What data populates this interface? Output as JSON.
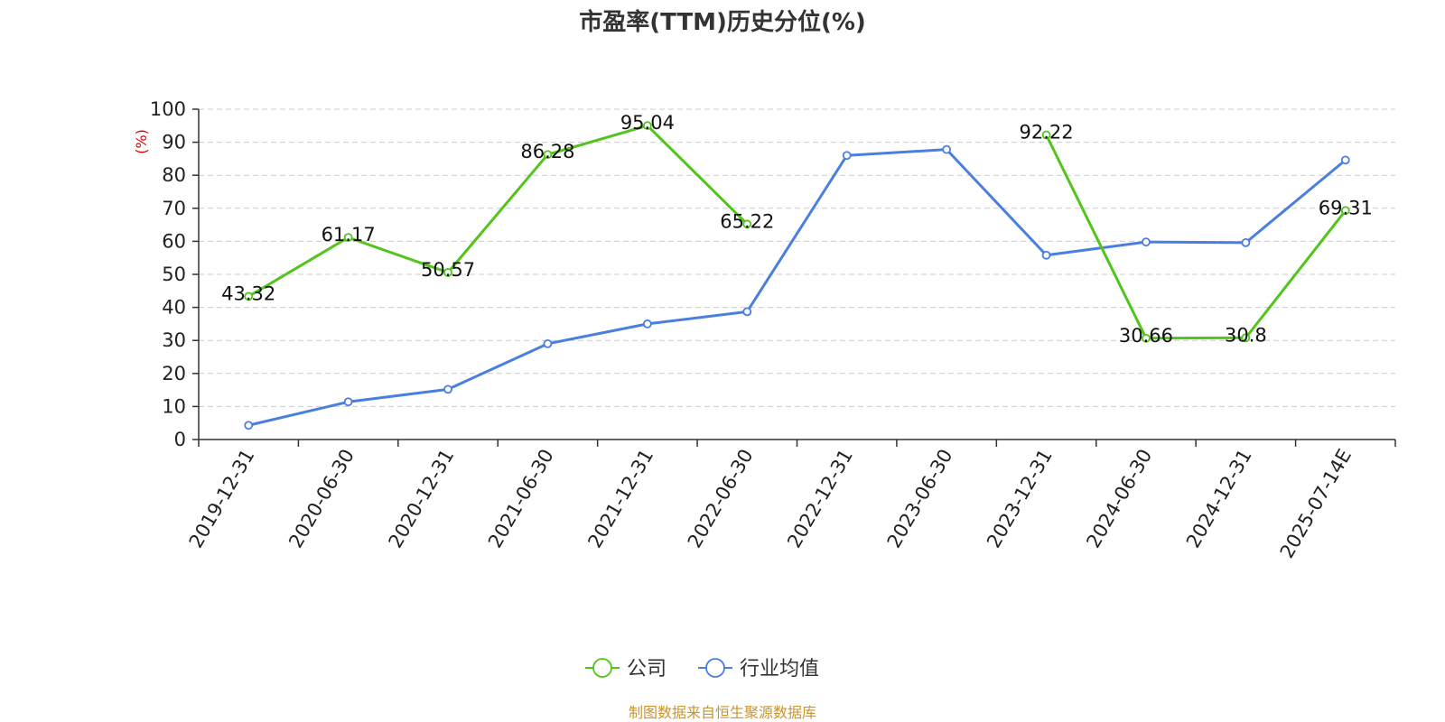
{
  "chart_data": {
    "type": "line",
    "title": "市盈率(TTM)历史分位(%)",
    "ylabel": "(%)",
    "xlabel": "",
    "ylim": [
      0,
      100
    ],
    "yticks": [
      0,
      10,
      20,
      30,
      40,
      50,
      60,
      70,
      80,
      90,
      100
    ],
    "grid": true,
    "legend_position": "bottom",
    "categories": [
      "2019-12-31",
      "2020-06-30",
      "2020-12-31",
      "2021-06-30",
      "2021-12-31",
      "2022-06-30",
      "2022-12-31",
      "2023-06-30",
      "2023-12-31",
      "2024-06-30",
      "2024-12-31",
      "2025-07-14E"
    ],
    "series": [
      {
        "name": "公司",
        "color": "#52c41a",
        "show_labels": true,
        "values": [
          43.32,
          61.17,
          50.57,
          86.28,
          95.04,
          65.22,
          null,
          null,
          92.22,
          30.66,
          30.8,
          69.31
        ]
      },
      {
        "name": "行业均值",
        "color": "#4a7fe0",
        "show_labels": false,
        "values": [
          4.3,
          11.4,
          15.2,
          29.0,
          35.0,
          38.7,
          86.0,
          87.8,
          55.8,
          59.8,
          59.6,
          84.6
        ]
      }
    ]
  },
  "source_text": "制图数据来自恒生聚源数据库"
}
